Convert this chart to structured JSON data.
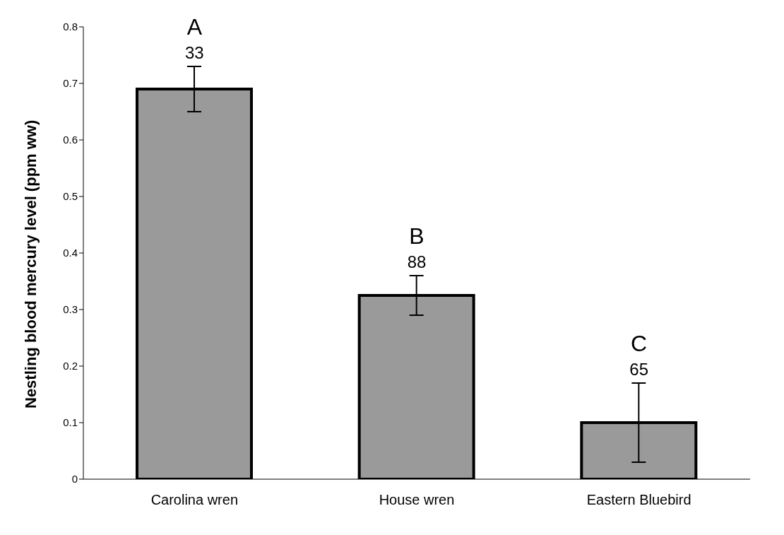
{
  "chart_data": {
    "type": "bar",
    "ylabel": "Nestling blood mercury level (ppm ww)",
    "categories": [
      "Carolina wren",
      "House wren",
      "Eastern Bluebird"
    ],
    "values": [
      0.69,
      0.325,
      0.1
    ],
    "errors": [
      0.04,
      0.035,
      0.07
    ],
    "color": "#9a9a9a",
    "ylim": [
      0,
      0.8
    ],
    "yticks": [
      0,
      0.1,
      0.2,
      0.3,
      0.4,
      0.5,
      0.6,
      0.7,
      0.8
    ],
    "grid": false,
    "annotations": [
      "A",
      "33",
      "B",
      "88",
      "C",
      "65"
    ]
  }
}
